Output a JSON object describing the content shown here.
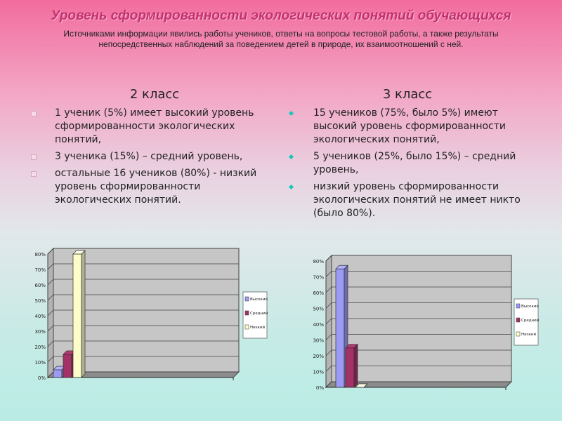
{
  "title": "Уровень сформированности экологических понятий обучающихся",
  "subtitle": "Источниками информации явились работы учеников, ответы на вопросы тестовой работы, а также результаты непосредственных наблюдений за поведением детей в природе, их взаимоотношений с ней.",
  "left": {
    "heading": "2 класс",
    "items": [
      "1 ученик (5%) имеет высокий уровень сформированности экологических понятий,",
      " 3 ученика (15%) – средний уровень,",
      " остальные 16 учеников (80%) - низкий уровень сформированности экологических понятий."
    ]
  },
  "right": {
    "heading": "3 класс",
    "items": [
      "  15 учеников (75%, было 5%) имеют высокий уровень сформированности экологических понятий,",
      " 5 учеников (25%, было 15%) – средний уровень,",
      " низкий уровень сформированности экологических понятий не имеет никто (было 80%)."
    ]
  },
  "colors": {
    "high": "#9b9bf5",
    "mid": "#a33266",
    "low": "#fcfdc9",
    "wall": "#c6c6c6"
  },
  "chart_data": [
    {
      "type": "bar",
      "categories": [
        ""
      ],
      "ylim": [
        0,
        80
      ],
      "yticks": [
        "0%",
        "10%",
        "20%",
        "30%",
        "40%",
        "50%",
        "60%",
        "70%",
        "80%"
      ],
      "series": [
        {
          "name": "Высокий",
          "values": [
            5
          ]
        },
        {
          "name": "Средний",
          "values": [
            15
          ]
        },
        {
          "name": "Низкий",
          "values": [
            80
          ]
        }
      ],
      "legend": "right"
    },
    {
      "type": "bar",
      "categories": [
        ""
      ],
      "ylim": [
        0,
        80
      ],
      "yticks": [
        "0%",
        "10%",
        "20%",
        "30%",
        "40%",
        "50%",
        "60%",
        "70%",
        "80%"
      ],
      "series": [
        {
          "name": "Высокий",
          "values": [
            75
          ]
        },
        {
          "name": "Средний",
          "values": [
            25
          ]
        },
        {
          "name": "Низкий",
          "values": [
            0
          ]
        }
      ],
      "legend": "right"
    }
  ]
}
